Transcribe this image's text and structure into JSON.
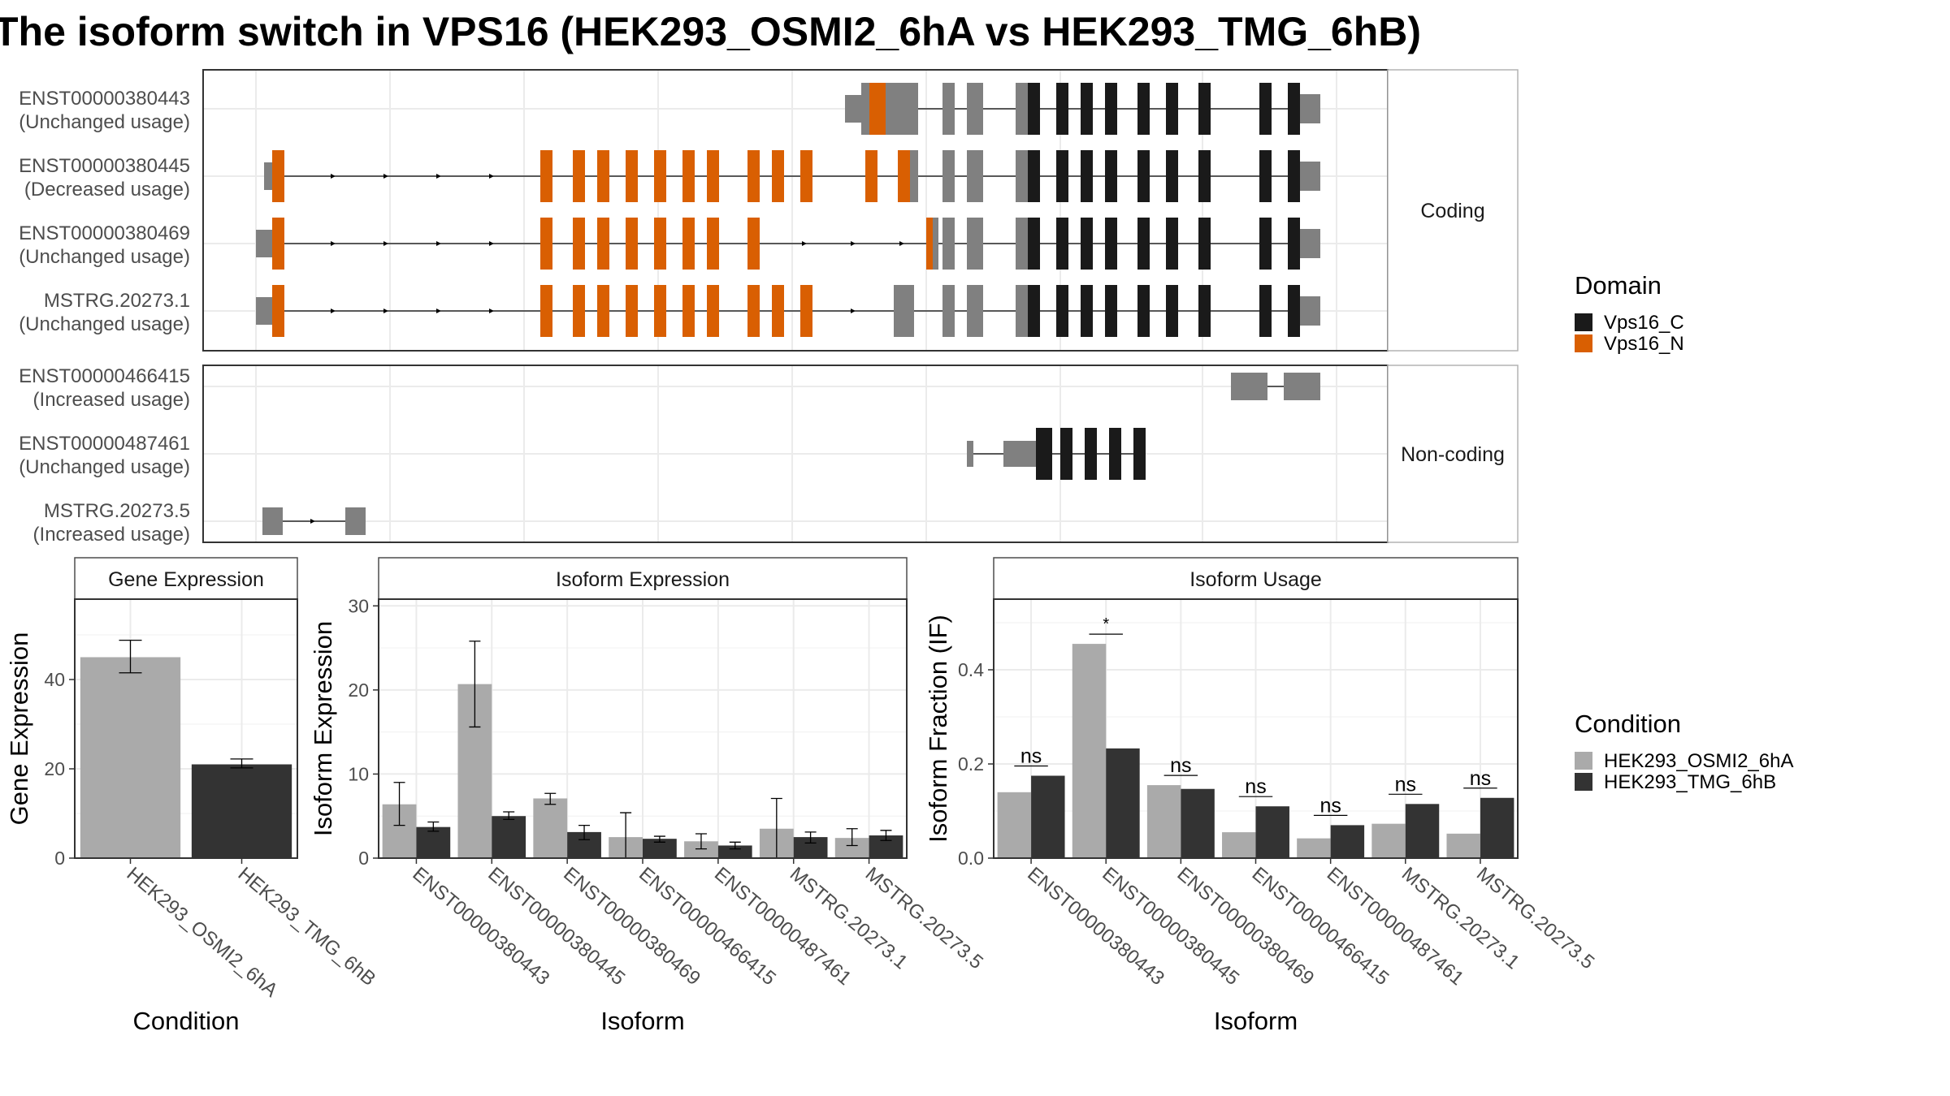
{
  "title": "The isoform switch in VPS16 (HEK293_OSMI2_6hA vs HEK293_TMG_6hB)",
  "colors": {
    "vps16_c": "#1a1a1a",
    "vps16_n": "#d95f02",
    "utr": "#808080",
    "cond_a": "#aaaaaa",
    "cond_b": "#333333",
    "panel_border": "#333333",
    "strip_border": "#999999",
    "grid": "#ebebeb"
  },
  "structure": {
    "coding_label": "Coding",
    "noncoding_label": "Non-coding",
    "coding": [
      {
        "id": "ENST00000380443",
        "note": "(Unchanged usage)",
        "line": [
          1060,
          1625
        ],
        "exons": [
          [
            1040,
            1060,
            "n"
          ],
          [
            1060,
            1070,
            "u"
          ],
          [
            1070,
            1090,
            "o"
          ],
          [
            1090,
            1130,
            "u"
          ],
          [
            1160,
            1175,
            "u"
          ],
          [
            1190,
            1210,
            "u"
          ],
          [
            1250,
            1265,
            "u"
          ],
          [
            1265,
            1280,
            "c"
          ],
          [
            1300,
            1315,
            "c"
          ],
          [
            1330,
            1345,
            "c"
          ],
          [
            1360,
            1375,
            "c"
          ],
          [
            1400,
            1415,
            "c"
          ],
          [
            1435,
            1450,
            "c"
          ],
          [
            1475,
            1490,
            "c"
          ],
          [
            1550,
            1565,
            "c"
          ],
          [
            1585,
            1600,
            "c"
          ],
          [
            1600,
            1625,
            "u"
          ]
        ]
      },
      {
        "id": "ENST00000380445",
        "note": "(Decreased usage)",
        "line": [
          330,
          1625
        ],
        "arrows": [
          410,
          475,
          540,
          605
        ],
        "exons": [
          [
            325,
            335,
            "n"
          ],
          [
            335,
            350,
            "o"
          ],
          [
            665,
            680,
            "o"
          ],
          [
            705,
            720,
            "o"
          ],
          [
            735,
            750,
            "o"
          ],
          [
            770,
            785,
            "o"
          ],
          [
            805,
            820,
            "o"
          ],
          [
            840,
            855,
            "o"
          ],
          [
            870,
            885,
            "o"
          ],
          [
            920,
            935,
            "o"
          ],
          [
            950,
            965,
            "o"
          ],
          [
            985,
            1000,
            "o"
          ],
          [
            1065,
            1080,
            "o"
          ],
          [
            1105,
            1120,
            "o"
          ],
          [
            1120,
            1130,
            "u"
          ],
          [
            1160,
            1175,
            "u"
          ],
          [
            1190,
            1210,
            "u"
          ],
          [
            1250,
            1265,
            "u"
          ],
          [
            1265,
            1280,
            "c"
          ],
          [
            1300,
            1315,
            "c"
          ],
          [
            1330,
            1345,
            "c"
          ],
          [
            1360,
            1375,
            "c"
          ],
          [
            1400,
            1415,
            "c"
          ],
          [
            1435,
            1450,
            "c"
          ],
          [
            1475,
            1490,
            "c"
          ],
          [
            1550,
            1565,
            "c"
          ],
          [
            1585,
            1600,
            "c"
          ],
          [
            1600,
            1625,
            "u"
          ]
        ]
      },
      {
        "id": "ENST00000380469",
        "note": "(Unchanged usage)",
        "line": [
          315,
          1625
        ],
        "arrows": [
          410,
          475,
          540,
          605,
          990,
          1050,
          1110
        ],
        "exons": [
          [
            315,
            335,
            "n"
          ],
          [
            335,
            350,
            "o"
          ],
          [
            665,
            680,
            "o"
          ],
          [
            705,
            720,
            "o"
          ],
          [
            735,
            750,
            "o"
          ],
          [
            770,
            785,
            "o"
          ],
          [
            805,
            820,
            "o"
          ],
          [
            840,
            855,
            "o"
          ],
          [
            870,
            885,
            "o"
          ],
          [
            920,
            935,
            "o"
          ],
          [
            1140,
            1148,
            "o"
          ],
          [
            1148,
            1155,
            "u"
          ],
          [
            1160,
            1175,
            "u"
          ],
          [
            1190,
            1210,
            "u"
          ],
          [
            1250,
            1265,
            "u"
          ],
          [
            1265,
            1280,
            "c"
          ],
          [
            1300,
            1315,
            "c"
          ],
          [
            1330,
            1345,
            "c"
          ],
          [
            1360,
            1375,
            "c"
          ],
          [
            1400,
            1415,
            "c"
          ],
          [
            1435,
            1450,
            "c"
          ],
          [
            1475,
            1490,
            "c"
          ],
          [
            1550,
            1565,
            "c"
          ],
          [
            1585,
            1600,
            "c"
          ],
          [
            1600,
            1625,
            "u"
          ]
        ]
      },
      {
        "id": "MSTRG.20273.1",
        "note": "(Unchanged usage)",
        "line": [
          315,
          1625
        ],
        "arrows": [
          410,
          475,
          540,
          605,
          1050
        ],
        "exons": [
          [
            315,
            335,
            "n"
          ],
          [
            335,
            350,
            "o"
          ],
          [
            665,
            680,
            "o"
          ],
          [
            705,
            720,
            "o"
          ],
          [
            735,
            750,
            "o"
          ],
          [
            770,
            785,
            "o"
          ],
          [
            805,
            820,
            "o"
          ],
          [
            840,
            855,
            "o"
          ],
          [
            870,
            885,
            "o"
          ],
          [
            920,
            935,
            "o"
          ],
          [
            950,
            965,
            "o"
          ],
          [
            985,
            1000,
            "o"
          ],
          [
            1100,
            1125,
            "u"
          ],
          [
            1160,
            1175,
            "u"
          ],
          [
            1190,
            1210,
            "u"
          ],
          [
            1250,
            1265,
            "u"
          ],
          [
            1265,
            1280,
            "c"
          ],
          [
            1300,
            1315,
            "c"
          ],
          [
            1330,
            1345,
            "c"
          ],
          [
            1360,
            1375,
            "c"
          ],
          [
            1400,
            1415,
            "c"
          ],
          [
            1435,
            1450,
            "c"
          ],
          [
            1475,
            1490,
            "c"
          ],
          [
            1550,
            1565,
            "c"
          ],
          [
            1585,
            1600,
            "c"
          ],
          [
            1600,
            1625,
            "u"
          ]
        ]
      }
    ],
    "noncoding": [
      {
        "id": "ENST00000466415",
        "note": "(Increased usage)",
        "line": [
          1515,
          1625
        ],
        "exons": [
          [
            1515,
            1560,
            "u"
          ],
          [
            1580,
            1625,
            "u"
          ]
        ]
      },
      {
        "id": "ENST00000487461",
        "note": "(Unchanged usage)",
        "line": [
          1190,
          1410
        ],
        "exons": [
          [
            1190,
            1198,
            "u"
          ],
          [
            1235,
            1275,
            "u"
          ],
          [
            1275,
            1295,
            "c"
          ],
          [
            1305,
            1320,
            "c"
          ],
          [
            1335,
            1350,
            "c"
          ],
          [
            1365,
            1380,
            "c"
          ],
          [
            1395,
            1410,
            "c"
          ]
        ]
      },
      {
        "id": "MSTRG.20273.5",
        "note": "(Increased usage)",
        "line": [
          335,
          425
        ],
        "arrows": [
          385
        ],
        "exons": [
          [
            323,
            348,
            "u"
          ],
          [
            425,
            450,
            "u"
          ]
        ]
      }
    ]
  },
  "domain_legend": {
    "title": "Domain",
    "items": [
      {
        "label": "Vps16_C",
        "color": "#1a1a1a"
      },
      {
        "label": "Vps16_N",
        "color": "#d95f02"
      }
    ]
  },
  "condition_legend": {
    "title": "Condition",
    "items": [
      {
        "label": "HEK293_OSMI2_6hA",
        "color": "#aaaaaa"
      },
      {
        "label": "HEK293_TMG_6hB",
        "color": "#333333"
      }
    ]
  },
  "chart_data": [
    {
      "type": "bar",
      "title": "Gene Expression",
      "xlabel": "Condition",
      "ylabel": "Gene Expression",
      "ylim": [
        0,
        58
      ],
      "yticks": [
        0,
        20,
        40
      ],
      "categories": [
        "HEK293_OSMI2_6hA",
        "HEK293_TMG_6hB"
      ],
      "values": [
        45,
        21
      ],
      "errors": [
        [
          41.5,
          48.8
        ],
        [
          20.2,
          22.2
        ]
      ],
      "colors": [
        "#aaaaaa",
        "#333333"
      ]
    },
    {
      "type": "bar",
      "title": "Isoform Expression",
      "xlabel": "Isoform",
      "ylabel": "Isoform Expression",
      "ylim": [
        0,
        30.8
      ],
      "yticks": [
        0,
        10,
        20,
        30
      ],
      "categories": [
        "ENST00000380443",
        "ENST00000380445",
        "ENST00000380469",
        "ENST00000466415",
        "ENST00000487461",
        "MSTRG.20273.1",
        "MSTRG.20273.5"
      ],
      "series": [
        {
          "name": "HEK293_OSMI2_6hA",
          "values": [
            6.4,
            20.7,
            7.1,
            2.5,
            2.0,
            3.5,
            2.4
          ],
          "errors": [
            [
              3.9,
              9.0
            ],
            [
              15.6,
              25.8
            ],
            [
              6.4,
              7.7
            ],
            [
              0,
              5.4
            ],
            [
              1.1,
              2.9
            ],
            [
              0,
              7.1
            ],
            [
              1.5,
              3.5
            ]
          ]
        },
        {
          "name": "HEK293_TMG_6hB",
          "values": [
            3.7,
            5.0,
            3.1,
            2.3,
            1.5,
            2.5,
            2.7
          ],
          "errors": [
            [
              3.2,
              4.3
            ],
            [
              4.6,
              5.5
            ],
            [
              2.2,
              3.9
            ],
            [
              1.9,
              2.6
            ],
            [
              1.1,
              1.9
            ],
            [
              1.8,
              3.1
            ],
            [
              2.1,
              3.3
            ]
          ]
        }
      ]
    },
    {
      "type": "bar",
      "title": "Isoform Usage",
      "xlabel": "Isoform",
      "ylabel": "Isoform Fraction (IF)",
      "ylim": [
        0,
        0.55
      ],
      "yticks": [
        0.0,
        0.2,
        0.4
      ],
      "yticklabels": [
        "0.0",
        "0.2",
        "0.4"
      ],
      "categories": [
        "ENST00000380443",
        "ENST00000380445",
        "ENST00000380469",
        "ENST00000466415",
        "ENST00000487461",
        "MSTRG.20273.1",
        "MSTRG.20273.5"
      ],
      "series": [
        {
          "name": "HEK293_OSMI2_6hA",
          "values": [
            0.14,
            0.455,
            0.155,
            0.055,
            0.042,
            0.073,
            0.052
          ]
        },
        {
          "name": "HEK293_TMG_6hB",
          "values": [
            0.175,
            0.233,
            0.147,
            0.11,
            0.07,
            0.115,
            0.128
          ]
        }
      ],
      "significance": [
        "ns",
        "*",
        "ns",
        "ns",
        "ns",
        "ns",
        "ns"
      ]
    }
  ]
}
